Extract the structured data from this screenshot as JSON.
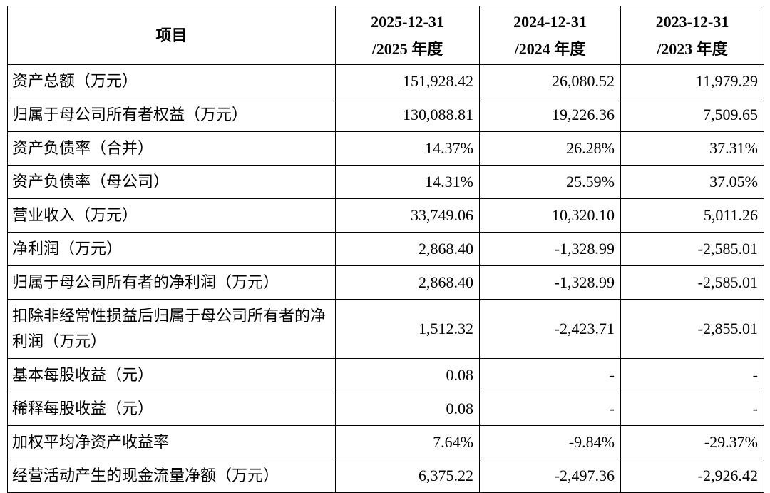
{
  "table": {
    "header": [
      {
        "line1": "项目"
      },
      {
        "line1": "2025-12-31",
        "line2": "/2025 年度"
      },
      {
        "line1": "2024-12-31",
        "line2": "/2024 年度"
      },
      {
        "line1": "2023-12-31",
        "line2": "/2023 年度"
      }
    ],
    "rows": [
      [
        "资产总额（万元）",
        "151,928.42",
        "26,080.52",
        "11,979.29"
      ],
      [
        "归属于母公司所有者权益（万元）",
        "130,088.81",
        "19,226.36",
        "7,509.65"
      ],
      [
        "资产负债率（合并）",
        "14.37%",
        "26.28%",
        "37.31%"
      ],
      [
        "资产负债率（母公司）",
        "14.31%",
        "25.59%",
        "37.05%"
      ],
      [
        "营业收入（万元）",
        "33,749.06",
        "10,320.10",
        "5,011.26"
      ],
      [
        "净利润（万元）",
        "2,868.40",
        "-1,328.99",
        "-2,585.01"
      ],
      [
        "归属于母公司所有者的净利润（万元）",
        "2,868.40",
        "-1,328.99",
        "-2,585.01"
      ],
      [
        "扣除非经常性损益后归属于母公司所有者的净利润（万元）",
        "1,512.32",
        "-2,423.71",
        "-2,855.01"
      ],
      [
        "基本每股收益（元）",
        "0.08",
        "-",
        "-"
      ],
      [
        "稀释每股收益（元）",
        "0.08",
        "-",
        "-"
      ],
      [
        "加权平均净资产收益率",
        "7.64%",
        "-9.84%",
        "-29.37%"
      ],
      [
        "经营活动产生的现金流量净额（万元）",
        "6,375.22",
        "-2,497.36",
        "-2,926.42"
      ]
    ]
  }
}
